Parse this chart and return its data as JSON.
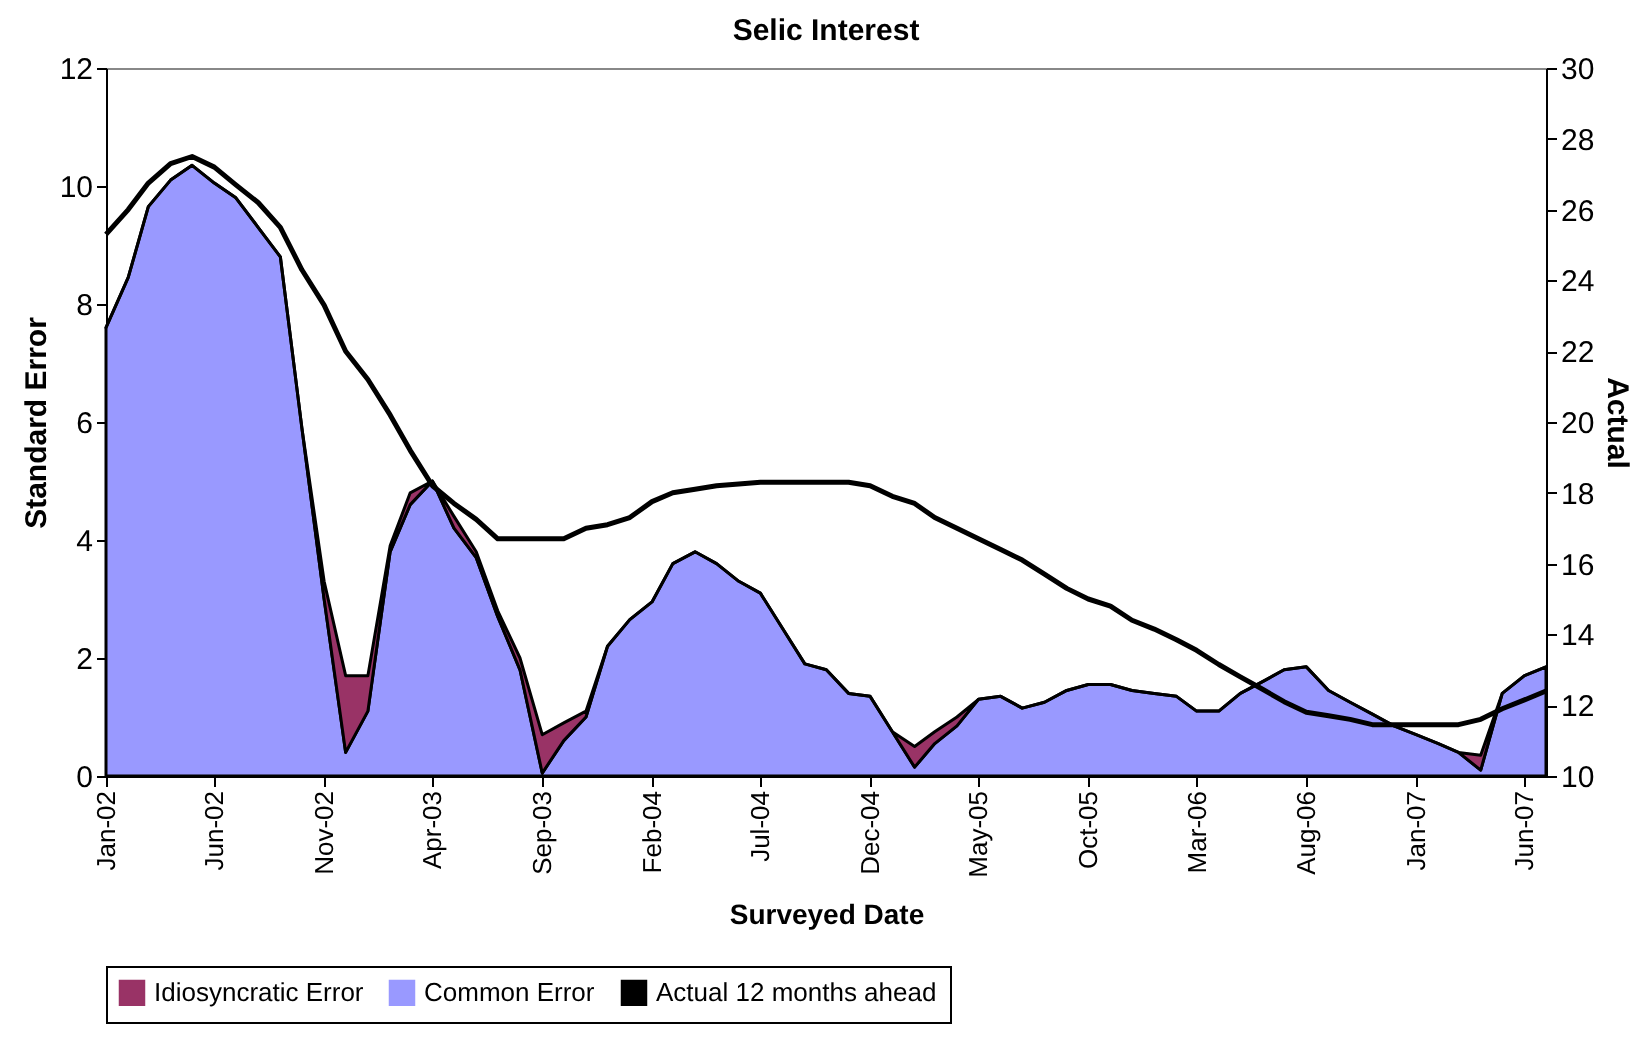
{
  "chart_data": {
    "type": "area",
    "title": "Selic Interest",
    "xlabel": "Surveyed Date",
    "ylabel": "Standard Error",
    "y2label": "Actual",
    "x": [
      "2002-01",
      "2002-02",
      "2002-03",
      "2002-04",
      "2002-05",
      "2002-06",
      "2002-07",
      "2002-08",
      "2002-09",
      "2002-10",
      "2002-11",
      "2002-12",
      "2003-01",
      "2003-02",
      "2003-03",
      "2003-04",
      "2003-05",
      "2003-06",
      "2003-07",
      "2003-08",
      "2003-09",
      "2003-10",
      "2003-11",
      "2003-12",
      "2004-01",
      "2004-02",
      "2004-03",
      "2004-04",
      "2004-05",
      "2004-06",
      "2004-07",
      "2004-08",
      "2004-09",
      "2004-10",
      "2004-11",
      "2004-12",
      "2005-01",
      "2005-02",
      "2005-03",
      "2005-04",
      "2005-05",
      "2005-06",
      "2005-07",
      "2005-08",
      "2005-09",
      "2005-10",
      "2005-11",
      "2005-12",
      "2006-01",
      "2006-02",
      "2006-03",
      "2006-04",
      "2006-05",
      "2006-06",
      "2006-07",
      "2006-08",
      "2006-09",
      "2006-10",
      "2006-11",
      "2006-12",
      "2007-01",
      "2007-02",
      "2007-03",
      "2007-04",
      "2007-05",
      "2007-06",
      "2007-07"
    ],
    "stacked": true,
    "series": [
      {
        "name": "Idiosyncratic Error",
        "color": "#993366",
        "values": [
          0,
          0,
          0,
          0,
          0,
          0,
          0,
          0,
          0,
          0,
          0.3,
          1.3,
          0.6,
          0.1,
          0.2,
          0,
          0.2,
          0.1,
          0.1,
          0.2,
          0.65,
          0.3,
          0.1,
          0,
          0,
          0,
          0,
          0,
          0,
          0,
          0,
          0,
          0,
          0,
          0,
          0,
          0,
          0.35,
          0.2,
          0.15,
          0,
          0,
          0,
          0,
          0,
          0,
          0,
          0,
          0,
          0,
          0,
          0,
          0,
          0,
          0,
          0,
          0,
          0,
          0,
          0,
          0,
          0,
          0,
          0.25,
          0,
          0,
          0
        ]
      },
      {
        "name": "Common Error",
        "color": "#9999ff",
        "values": [
          7.6,
          8.45,
          9.65,
          10.1,
          10.35,
          10.05,
          9.8,
          9.3,
          8.8,
          5.9,
          3.0,
          0.4,
          1.1,
          3.8,
          4.6,
          5.0,
          4.2,
          3.7,
          2.7,
          1.8,
          0.05,
          0.6,
          1.0,
          2.2,
          2.65,
          2.95,
          3.6,
          3.8,
          3.6,
          3.3,
          3.1,
          2.5,
          1.9,
          1.8,
          1.4,
          1.35,
          0.75,
          0.15,
          0.55,
          0.85,
          1.3,
          1.35,
          1.15,
          1.25,
          1.45,
          1.55,
          1.55,
          1.45,
          1.4,
          1.35,
          1.1,
          1.1,
          1.4,
          1.6,
          1.8,
          1.85,
          1.45,
          1.25,
          1.05,
          0.85,
          0.7,
          0.55,
          0.4,
          0.1,
          1.4,
          1.7,
          1.85
        ]
      },
      {
        "name": "Actual 12 months ahead",
        "type": "line",
        "axis": "y2",
        "color": "#000000",
        "values": [
          25.3,
          26.0,
          26.75,
          27.3,
          27.5,
          27.2,
          26.7,
          26.2,
          25.5,
          24.3,
          23.3,
          22.0,
          21.2,
          20.2,
          19.2,
          18.2,
          17.7,
          17.25,
          16.7,
          16.7,
          16.7,
          16.7,
          17.0,
          17.1,
          17.3,
          17.75,
          18.0,
          18.1,
          18.2,
          18.25,
          18.3,
          18.3,
          18.3,
          18.3,
          18.3,
          18.2,
          17.9,
          17.7,
          17.3,
          17.0,
          16.7,
          16.4,
          16.1,
          15.7,
          15.3,
          15.0,
          14.8,
          14.4,
          14.15,
          13.85,
          13.55,
          13.15,
          12.8,
          12.45,
          12.1,
          11.8,
          11.7,
          11.6,
          11.45,
          11.45,
          11.45,
          11.45,
          11.45,
          11.6,
          11.9,
          12.15,
          12.4
        ]
      }
    ],
    "xlim": [
      "2002-01",
      "2007-07"
    ],
    "xticks": [
      {
        "value": "2002-01",
        "label": "Jan-02"
      },
      {
        "value": "2002-06",
        "label": "Jun-02"
      },
      {
        "value": "2002-11",
        "label": "Nov-02"
      },
      {
        "value": "2003-04",
        "label": "Apr-03"
      },
      {
        "value": "2003-09",
        "label": "Sep-03"
      },
      {
        "value": "2004-02",
        "label": "Feb-04"
      },
      {
        "value": "2004-07",
        "label": "Jul-04"
      },
      {
        "value": "2004-12",
        "label": "Dec-04"
      },
      {
        "value": "2005-05",
        "label": "May-05"
      },
      {
        "value": "2005-10",
        "label": "Oct-05"
      },
      {
        "value": "2006-03",
        "label": "Mar-06"
      },
      {
        "value": "2006-08",
        "label": "Aug-06"
      },
      {
        "value": "2007-01",
        "label": "Jan-07"
      },
      {
        "value": "2007-06",
        "label": "Jun-07"
      }
    ],
    "ylim": [
      0,
      12
    ],
    "yticks": [
      0,
      2,
      4,
      6,
      8,
      10,
      12
    ],
    "y2lim": [
      10,
      30
    ],
    "y2ticks": [
      10,
      12,
      14,
      16,
      18,
      20,
      22,
      24,
      26,
      28,
      30
    ],
    "grid": false,
    "legend": "bottom"
  }
}
